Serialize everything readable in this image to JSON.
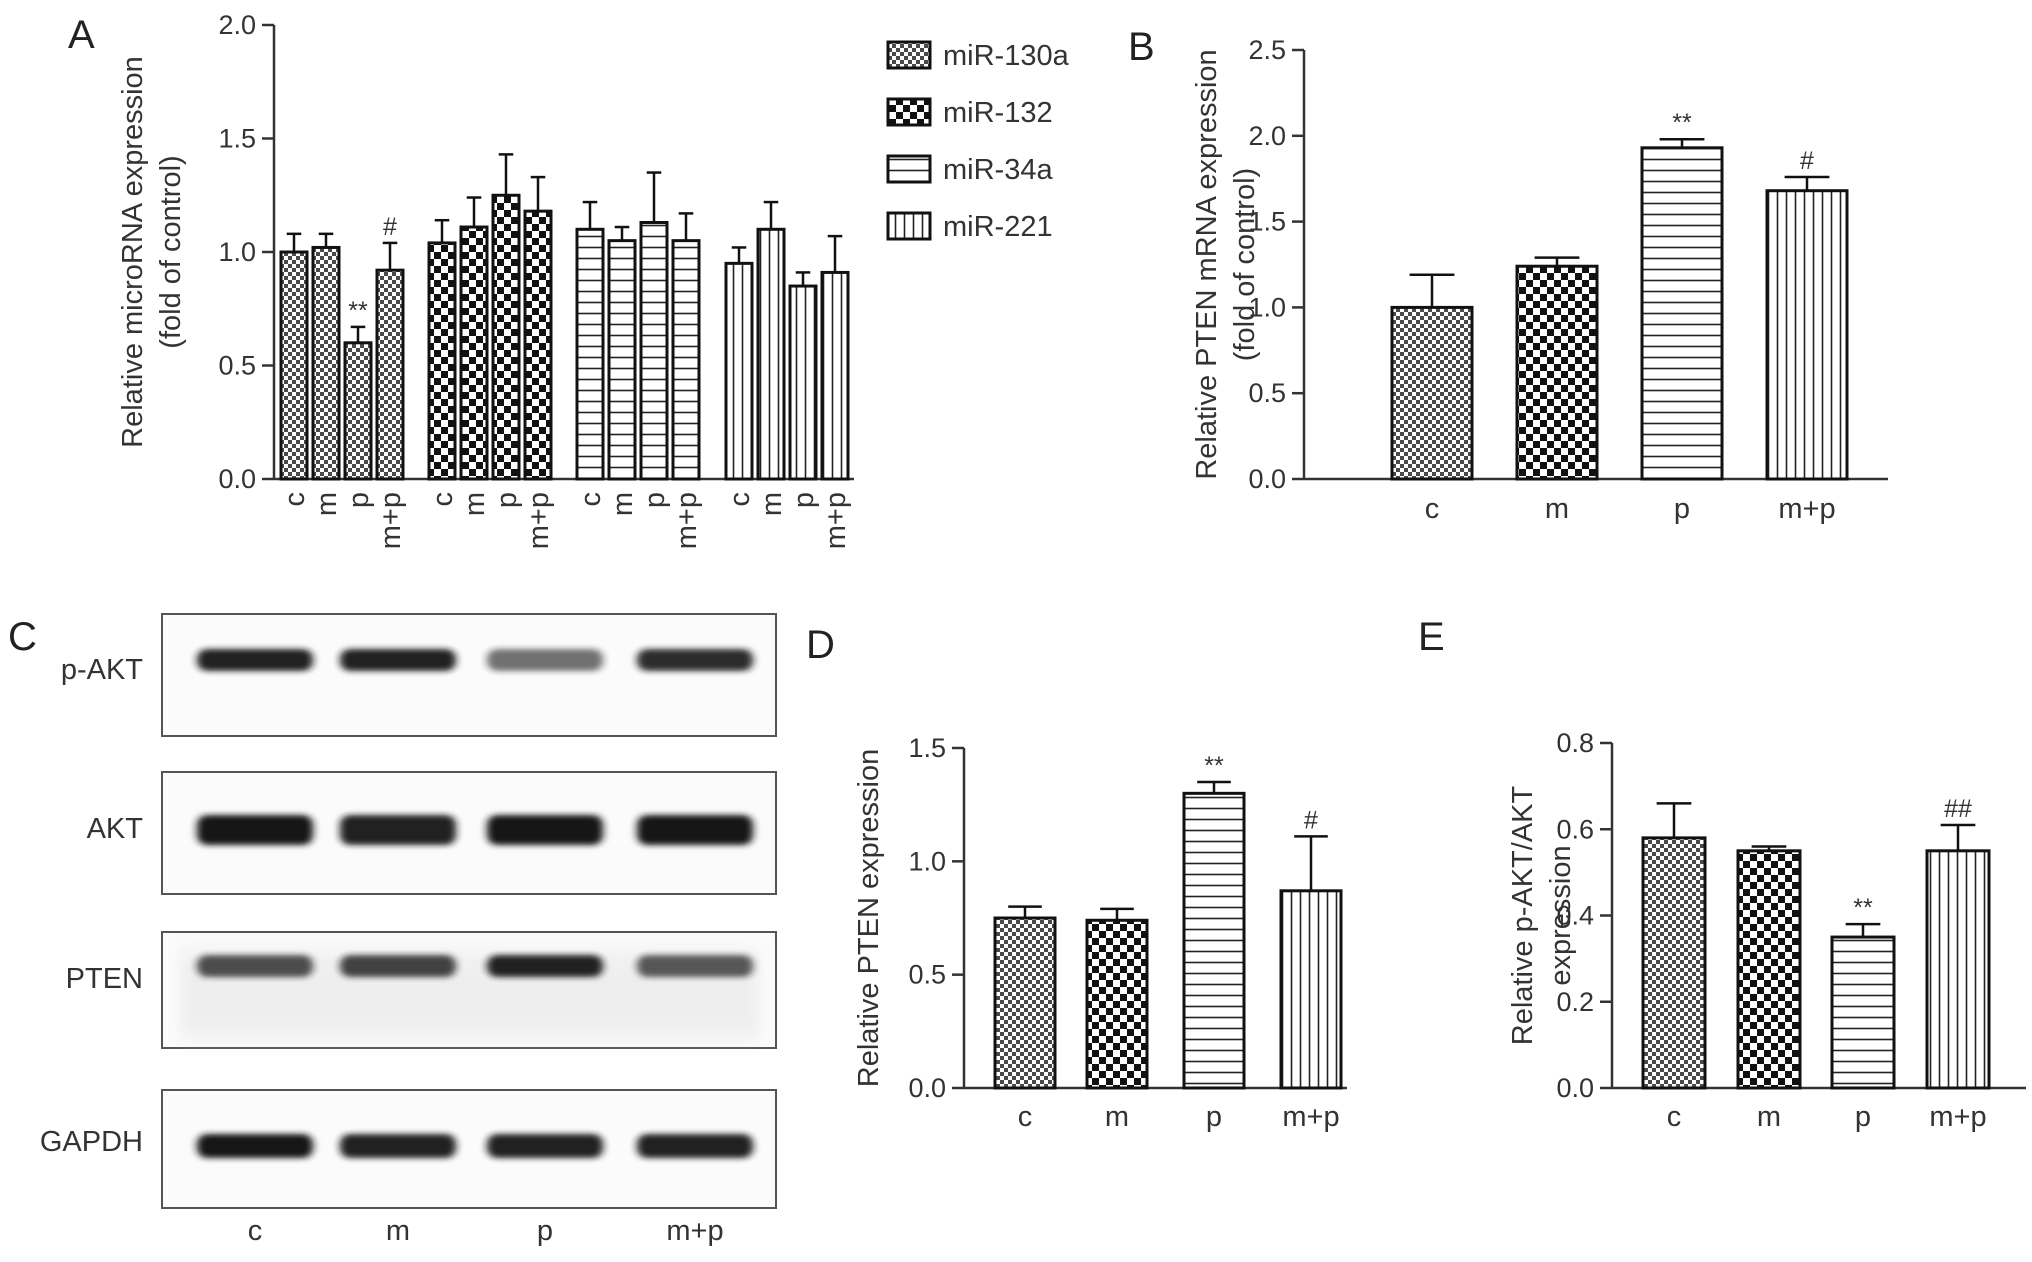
{
  "panel_labels": {
    "a": "A",
    "b": "B",
    "c": "C",
    "d": "D",
    "e": "E"
  },
  "colors": {
    "axis": "#333333",
    "bar_edge": "#111111",
    "band": "#161616",
    "background": "#ffffff"
  },
  "chart_data": [
    {
      "id": "A",
      "type": "bar",
      "ylabel": [
        "Relative microRNA expression",
        "(fold of control)"
      ],
      "ylim": [
        0,
        2.0
      ],
      "yticks": [
        "0.0",
        "0.5",
        "1.0",
        "1.5",
        "2.0"
      ],
      "ytick_values": [
        0,
        0.5,
        1.0,
        1.5,
        2.0
      ],
      "groups": [
        "c",
        "m",
        "p",
        "m+p"
      ],
      "legend_position": "right of plot",
      "series": [
        {
          "name": "miR-130a",
          "pattern": "fine-check",
          "values": [
            1.0,
            1.02,
            0.6,
            0.92
          ],
          "errors": [
            0.08,
            0.06,
            0.07,
            0.12
          ],
          "marks": [
            "",
            "",
            "**",
            "#"
          ]
        },
        {
          "name": "miR-132",
          "pattern": "checker",
          "values": [
            1.04,
            1.11,
            1.25,
            1.18
          ],
          "errors": [
            0.1,
            0.13,
            0.18,
            0.15
          ],
          "marks": [
            "",
            "",
            "",
            ""
          ]
        },
        {
          "name": "miR-34a",
          "pattern": "horizontal",
          "values": [
            1.1,
            1.05,
            1.13,
            1.05
          ],
          "errors": [
            0.12,
            0.06,
            0.22,
            0.12
          ],
          "marks": [
            "",
            "",
            "",
            ""
          ]
        },
        {
          "name": "miR-221",
          "pattern": "vertical",
          "values": [
            0.95,
            1.1,
            0.85,
            0.91
          ],
          "errors": [
            0.07,
            0.12,
            0.06,
            0.16
          ],
          "marks": [
            "",
            "",
            "",
            ""
          ]
        }
      ]
    },
    {
      "id": "B",
      "type": "bar",
      "ylabel": [
        "Relative PTEN mRNA expression",
        "(fold of control)"
      ],
      "ylim": [
        0,
        2.5
      ],
      "yticks": [
        "0.0",
        "0.5",
        "1.0",
        "1.5",
        "2.0",
        "2.5"
      ],
      "ytick_values": [
        0,
        0.5,
        1.0,
        1.5,
        2.0,
        2.5
      ],
      "categories": [
        "c",
        "m",
        "p",
        "m+p"
      ],
      "patterns": [
        "fine-check",
        "checker",
        "horizontal",
        "vertical"
      ],
      "values": [
        1.0,
        1.24,
        1.93,
        1.68
      ],
      "errors": [
        0.19,
        0.05,
        0.05,
        0.08
      ],
      "marks": [
        "",
        "",
        "**",
        "#"
      ]
    },
    {
      "id": "D",
      "type": "bar",
      "ylabel": [
        "Relative PTEN expression"
      ],
      "ylim": [
        0,
        1.5
      ],
      "yticks": [
        "0.0",
        "0.5",
        "1.0",
        "1.5"
      ],
      "ytick_values": [
        0,
        0.5,
        1.0,
        1.5
      ],
      "categories": [
        "c",
        "m",
        "p",
        "m+p"
      ],
      "patterns": [
        "fine-check",
        "checker",
        "horizontal",
        "vertical"
      ],
      "values": [
        0.75,
        0.74,
        1.3,
        0.87
      ],
      "errors": [
        0.05,
        0.05,
        0.05,
        0.24
      ],
      "marks": [
        "",
        "",
        "**",
        "#"
      ]
    },
    {
      "id": "E",
      "type": "bar",
      "ylabel": [
        "Relative p-AKT/AKT",
        "expression"
      ],
      "ylim": [
        0,
        0.8
      ],
      "yticks": [
        "0.0",
        "0.2",
        "0.4",
        "0.6",
        "0.8"
      ],
      "ytick_values": [
        0,
        0.2,
        0.4,
        0.6,
        0.8
      ],
      "categories": [
        "c",
        "m",
        "p",
        "m+p"
      ],
      "patterns": [
        "fine-check",
        "checker",
        "horizontal",
        "vertical"
      ],
      "values": [
        0.58,
        0.55,
        0.35,
        0.55
      ],
      "errors": [
        0.08,
        0.01,
        0.03,
        0.06
      ],
      "marks": [
        "",
        "",
        "**",
        "##"
      ]
    }
  ],
  "western_blot": {
    "rows": [
      "p-AKT",
      "AKT",
      "PTEN",
      "GAPDH"
    ],
    "lanes": [
      "c",
      "m",
      "p",
      "m+p"
    ],
    "band_intensity": [
      [
        0.95,
        0.95,
        0.6,
        0.9
      ],
      [
        1.0,
        0.95,
        1.0,
        1.0
      ],
      [
        0.75,
        0.8,
        0.95,
        0.7
      ],
      [
        1.0,
        0.95,
        0.95,
        0.95
      ]
    ]
  }
}
